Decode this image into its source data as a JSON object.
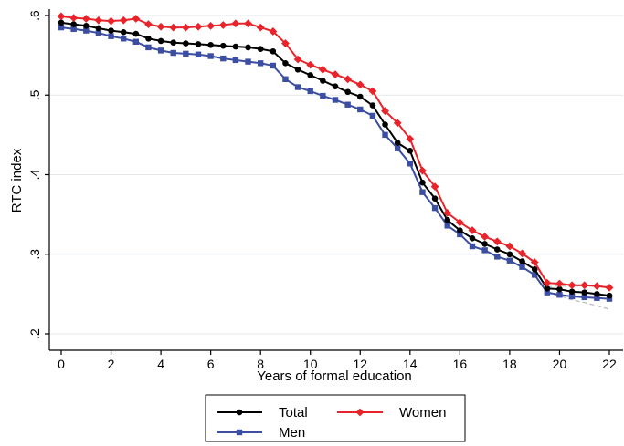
{
  "chart_data": {
    "type": "line",
    "xlabel": "Years of formal education",
    "ylabel": "RTC index",
    "xlim": [
      0,
      22
    ],
    "ylim": [
      0.2,
      0.6
    ],
    "xticks": [
      0,
      2,
      4,
      6,
      8,
      10,
      12,
      14,
      16,
      18,
      20,
      22
    ],
    "xtick_labels": [
      "0",
      "2",
      "4",
      "6",
      "8",
      "10",
      "12",
      "14",
      "16",
      "18",
      "20",
      "22"
    ],
    "yticks": [
      0.2,
      0.3,
      0.4,
      0.5,
      0.6
    ],
    "ytick_labels": [
      ".2",
      ".3",
      ".4",
      ".5",
      ".6"
    ],
    "grid": "horizontal",
    "legend_position": "bottom",
    "x": [
      0,
      0.5,
      1,
      1.5,
      2,
      2.5,
      3,
      3.5,
      4,
      4.5,
      5,
      5.5,
      6,
      6.5,
      7,
      7.5,
      8,
      8.5,
      9,
      9.5,
      10,
      10.5,
      11,
      11.5,
      12,
      12.5,
      13,
      13.5,
      14,
      14.5,
      15,
      15.5,
      16,
      16.5,
      17,
      17.5,
      18,
      18.5,
      19,
      19.5,
      20,
      20.5,
      21,
      21.5,
      22
    ],
    "series": [
      {
        "name": "Total",
        "color": "#000000",
        "marker": "circle",
        "values": [
          0.591,
          0.589,
          0.587,
          0.584,
          0.581,
          0.579,
          0.577,
          0.571,
          0.568,
          0.566,
          0.565,
          0.564,
          0.563,
          0.562,
          0.561,
          0.56,
          0.558,
          0.555,
          0.54,
          0.532,
          0.525,
          0.518,
          0.511,
          0.504,
          0.498,
          0.487,
          0.463,
          0.44,
          0.43,
          0.39,
          0.37,
          0.343,
          0.33,
          0.32,
          0.313,
          0.306,
          0.3,
          0.291,
          0.281,
          0.257,
          0.256,
          0.253,
          0.252,
          0.25,
          0.248
        ]
      },
      {
        "name": "Women",
        "color": "#e8232a",
        "marker": "diamond",
        "values": [
          0.599,
          0.597,
          0.596,
          0.594,
          0.593,
          0.594,
          0.596,
          0.589,
          0.586,
          0.585,
          0.585,
          0.586,
          0.587,
          0.588,
          0.59,
          0.59,
          0.585,
          0.58,
          0.565,
          0.545,
          0.538,
          0.532,
          0.526,
          0.52,
          0.513,
          0.505,
          0.48,
          0.465,
          0.445,
          0.405,
          0.385,
          0.352,
          0.34,
          0.33,
          0.322,
          0.316,
          0.31,
          0.301,
          0.29,
          0.264,
          0.263,
          0.261,
          0.261,
          0.26,
          0.258
        ]
      },
      {
        "name": "Men",
        "color": "#3b4ea2",
        "marker": "square",
        "values": [
          0.585,
          0.583,
          0.581,
          0.578,
          0.574,
          0.571,
          0.567,
          0.56,
          0.556,
          0.553,
          0.552,
          0.551,
          0.549,
          0.546,
          0.544,
          0.542,
          0.54,
          0.537,
          0.52,
          0.51,
          0.505,
          0.499,
          0.494,
          0.488,
          0.482,
          0.474,
          0.45,
          0.433,
          0.414,
          0.378,
          0.358,
          0.336,
          0.325,
          0.31,
          0.305,
          0.297,
          0.292,
          0.284,
          0.274,
          0.252,
          0.249,
          0.247,
          0.246,
          0.245,
          0.244
        ]
      }
    ]
  }
}
